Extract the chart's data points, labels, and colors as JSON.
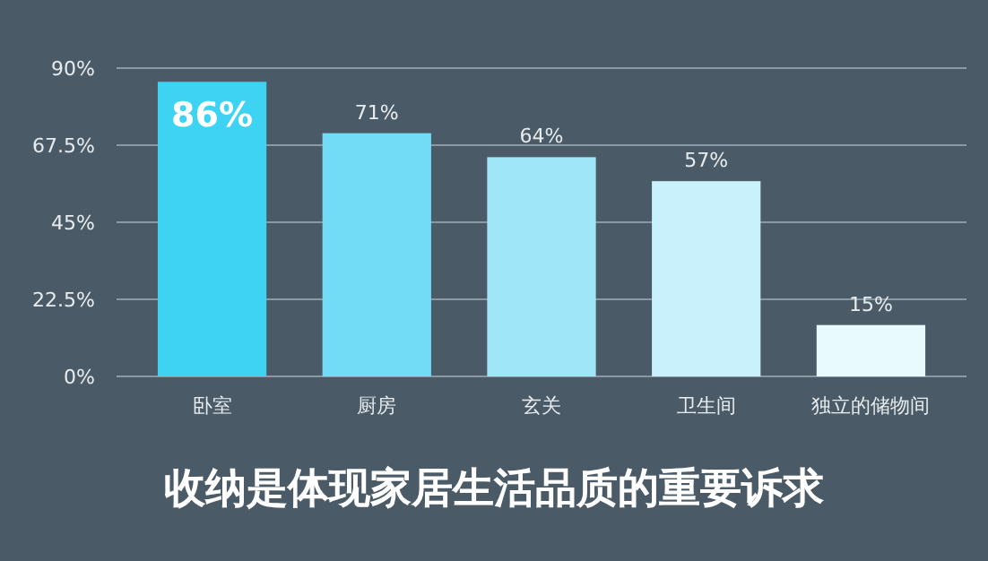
{
  "chart_data": {
    "type": "bar",
    "title": "收纳是体现家居生活品质的重要诉求",
    "categories": [
      "卧室",
      "厨房",
      "玄关",
      "卫生间",
      "独立的储物间"
    ],
    "values": [
      86,
      71,
      64,
      57,
      15
    ],
    "colors": [
      "#3ed3f3",
      "#72dcf7",
      "#a0e6f9",
      "#c8f1fb",
      "#e8fafd"
    ],
    "value_labels": [
      "86%",
      "71%",
      "64%",
      "57%",
      "15%"
    ],
    "ylim": [
      0,
      90
    ],
    "yticks": [
      {
        "value": 0,
        "label": "0%"
      },
      {
        "value": 22.5,
        "label": "22.5%"
      },
      {
        "value": 45,
        "label": "45%"
      },
      {
        "value": 67.5,
        "label": "67.5%"
      },
      {
        "value": 90,
        "label": "90%"
      }
    ],
    "grid": "y"
  }
}
